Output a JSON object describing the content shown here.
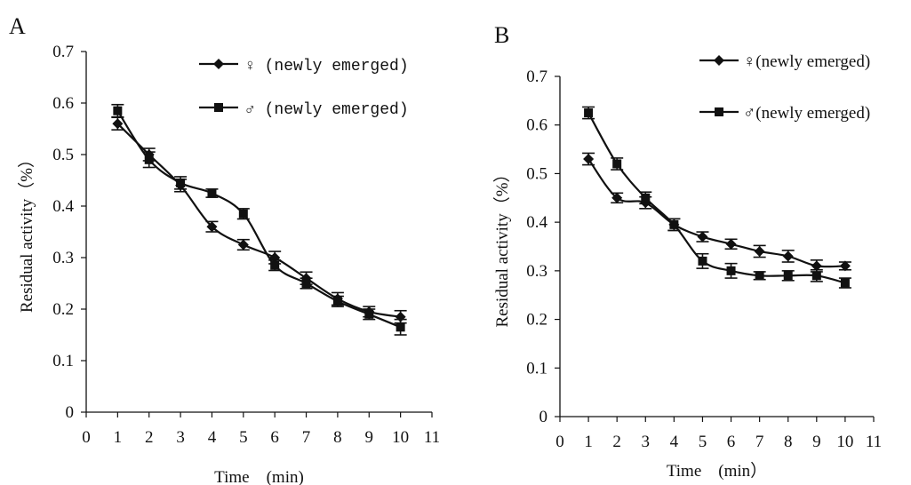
{
  "colors": {
    "line": "#111111",
    "background": "#ffffff"
  },
  "chart_data": [
    {
      "panel": "A",
      "type": "line",
      "xlabel": "Time　(min)",
      "ylabel": "Residual activity（%）",
      "xlim": [
        0,
        11
      ],
      "ylim": [
        0,
        0.7
      ],
      "xticks": [
        0,
        1,
        2,
        3,
        4,
        5,
        6,
        7,
        8,
        9,
        10,
        11
      ],
      "yticks": [
        0,
        0.1,
        0.2,
        0.3,
        0.4,
        0.5,
        0.6,
        0.7
      ],
      "legend_position": "top-right",
      "x": [
        1,
        2,
        3,
        4,
        5,
        6,
        7,
        8,
        9,
        10
      ],
      "series": [
        {
          "name": "♀ (newly emerged)",
          "marker": "diamond",
          "values": [
            0.56,
            0.5,
            0.44,
            0.36,
            0.325,
            0.3,
            0.26,
            0.22,
            0.195,
            0.185
          ],
          "errors": [
            0.012,
            0.012,
            0.012,
            0.01,
            0.01,
            0.012,
            0.012,
            0.012,
            0.01,
            0.012
          ]
        },
        {
          "name": "♂ (newly emerged)",
          "marker": "square",
          "values": [
            0.585,
            0.49,
            0.445,
            0.425,
            0.385,
            0.285,
            0.25,
            0.215,
            0.19,
            0.165
          ],
          "errors": [
            0.012,
            0.015,
            0.012,
            0.008,
            0.01,
            0.01,
            0.01,
            0.01,
            0.01,
            0.015
          ]
        }
      ]
    },
    {
      "panel": "B",
      "type": "line",
      "xlabel": "Time　(min）",
      "ylabel": "Residual activity（%）",
      "xlim": [
        0,
        11
      ],
      "ylim": [
        0,
        0.7
      ],
      "xticks": [
        0,
        1,
        2,
        3,
        4,
        5,
        6,
        7,
        8,
        9,
        10,
        11
      ],
      "yticks": [
        0,
        0.1,
        0.2,
        0.3,
        0.4,
        0.5,
        0.6,
        0.7
      ],
      "legend_position": "top-right",
      "x": [
        1,
        2,
        3,
        4,
        5,
        6,
        7,
        8,
        9,
        10
      ],
      "series": [
        {
          "name": "♀(newly emerged)",
          "marker": "diamond",
          "values": [
            0.53,
            0.45,
            0.44,
            0.395,
            0.37,
            0.355,
            0.34,
            0.33,
            0.31,
            0.31
          ],
          "errors": [
            0.012,
            0.01,
            0.012,
            0.012,
            0.01,
            0.01,
            0.012,
            0.012,
            0.012,
            0.008
          ]
        },
        {
          "name": "♂(newly emerged)",
          "marker": "square",
          "values": [
            0.625,
            0.52,
            0.45,
            0.395,
            0.32,
            0.3,
            0.29,
            0.29,
            0.29,
            0.275
          ],
          "errors": [
            0.012,
            0.012,
            0.012,
            0.012,
            0.015,
            0.015,
            0.008,
            0.01,
            0.012,
            0.01
          ]
        }
      ]
    }
  ]
}
